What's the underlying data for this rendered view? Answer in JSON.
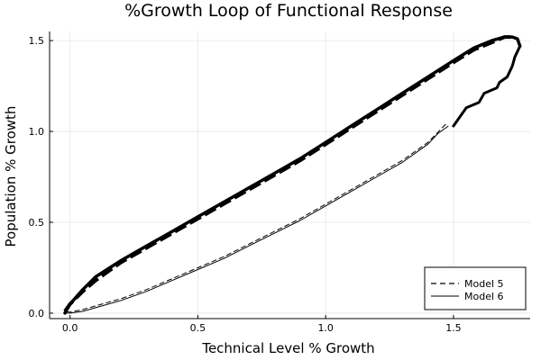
{
  "chart_data": {
    "type": "line",
    "title": "%Growth Loop of Functional Response",
    "xlabel": "Technical Level % Growth",
    "ylabel": "Population % Growth",
    "xlim": [
      -0.08,
      1.8
    ],
    "ylim": [
      -0.03,
      1.55
    ],
    "x_ticks": [
      0.0,
      0.5,
      1.0,
      1.5
    ],
    "x_tick_labels": [
      "0.0",
      "0.5",
      "1.0",
      "1.5"
    ],
    "y_ticks": [
      0.0,
      0.5,
      1.0,
      1.5
    ],
    "y_tick_labels": [
      "0.0",
      "0.5",
      "1.0",
      "1.5"
    ],
    "grid": true,
    "legend_position": "bottom-right",
    "series": [
      {
        "name": "Model 5",
        "style": "dashed",
        "color": "#000000",
        "upper": {
          "x": [
            -0.02,
            0.0,
            0.05,
            0.1,
            0.2,
            0.3,
            0.4,
            0.5,
            0.6,
            0.7,
            0.8,
            0.9,
            1.0,
            1.1,
            1.2,
            1.3,
            1.4,
            1.5,
            1.58,
            1.65,
            1.7,
            1.74
          ],
          "y": [
            0.01,
            0.05,
            0.12,
            0.18,
            0.28,
            0.36,
            0.44,
            0.52,
            0.6,
            0.68,
            0.76,
            0.84,
            0.93,
            1.02,
            1.11,
            1.2,
            1.29,
            1.38,
            1.45,
            1.49,
            1.52,
            1.52
          ]
        },
        "lower": {
          "x": [
            1.47,
            1.4,
            1.3,
            1.2,
            1.1,
            1.0,
            0.9,
            0.8,
            0.7,
            0.6,
            0.5,
            0.4,
            0.3,
            0.2,
            0.1,
            0.05,
            0.0,
            -0.02
          ],
          "y": [
            1.04,
            0.94,
            0.84,
            0.76,
            0.68,
            0.6,
            0.52,
            0.45,
            0.38,
            0.31,
            0.25,
            0.19,
            0.13,
            0.08,
            0.04,
            0.02,
            0.005,
            0.01
          ]
        }
      },
      {
        "name": "Model 6",
        "style": "solid",
        "color": "#000000",
        "upper": {
          "x": [
            -0.02,
            0.0,
            0.05,
            0.1,
            0.2,
            0.3,
            0.4,
            0.5,
            0.6,
            0.7,
            0.8,
            0.9,
            1.0,
            1.1,
            1.2,
            1.3,
            1.4,
            1.5,
            1.58,
            1.65,
            1.7,
            1.73,
            1.75,
            1.76
          ],
          "y": [
            0.0,
            0.05,
            0.13,
            0.2,
            0.29,
            0.37,
            0.45,
            0.53,
            0.61,
            0.69,
            0.77,
            0.85,
            0.94,
            1.03,
            1.12,
            1.21,
            1.3,
            1.39,
            1.46,
            1.5,
            1.52,
            1.52,
            1.51,
            1.47
          ]
        },
        "tail": {
          "x": [
            1.76,
            1.74,
            1.73,
            1.71,
            1.68,
            1.67,
            1.62,
            1.6,
            1.55,
            1.52,
            1.5
          ],
          "y": [
            1.47,
            1.41,
            1.36,
            1.3,
            1.27,
            1.24,
            1.21,
            1.16,
            1.13,
            1.07,
            1.03
          ]
        },
        "lower": {
          "x": [
            1.48,
            1.44,
            1.4,
            1.3,
            1.2,
            1.1,
            1.0,
            0.9,
            0.8,
            0.7,
            0.6,
            0.5,
            0.4,
            0.3,
            0.2,
            0.1,
            0.05,
            0.0,
            -0.02
          ],
          "y": [
            1.03,
            0.99,
            0.93,
            0.83,
            0.75,
            0.67,
            0.59,
            0.51,
            0.44,
            0.37,
            0.3,
            0.24,
            0.18,
            0.12,
            0.07,
            0.03,
            0.01,
            0.0,
            0.0
          ]
        }
      }
    ]
  }
}
